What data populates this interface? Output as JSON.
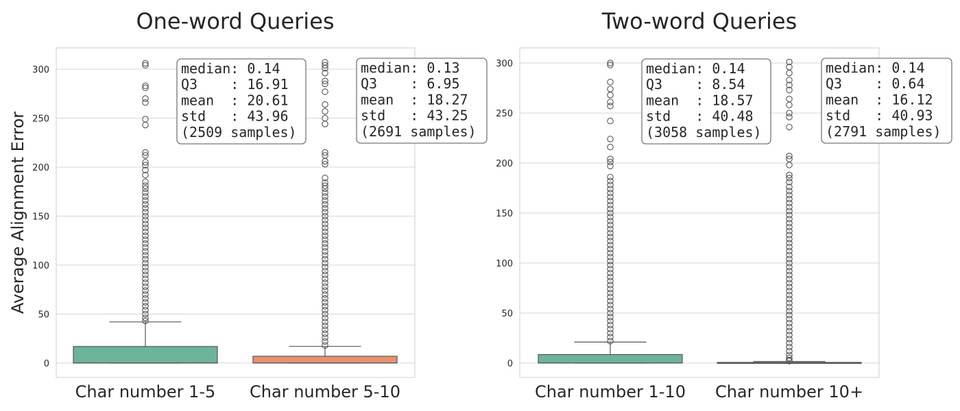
{
  "chart_data": [
    {
      "type": "box",
      "title": "One-word Queries",
      "ylabel": "Average Alignment Error",
      "xlabel": "",
      "ylim": [
        -15,
        323
      ],
      "yticks": [
        0,
        50,
        100,
        150,
        200,
        250,
        300
      ],
      "grid": true,
      "categories": [
        "Char number 1-5",
        "Char number 5-10"
      ],
      "colors": [
        "#6bb49a",
        "#e8916f"
      ],
      "boxes": [
        {
          "q1": 0.0,
          "median": 0.14,
          "q3": 16.91,
          "whisker_low": 0.0,
          "whisker_high": 42,
          "outliers": [
            306,
            304,
            283,
            281,
            270,
            266,
            249,
            243,
            215,
            212,
            205,
            202,
            197,
            192,
            185,
            181,
            178,
            174,
            170,
            166,
            162,
            158,
            154,
            150,
            146,
            142,
            138,
            134,
            130,
            126,
            122,
            118,
            114,
            110,
            106,
            102,
            98,
            94,
            90,
            86,
            82,
            78,
            74,
            70,
            66,
            62,
            58,
            54,
            50,
            46,
            43
          ],
          "stats": [
            "median: 0.14",
            "Q3    : 16.91",
            "mean  : 20.61",
            "std   : 43.96",
            "(2509 samples)"
          ]
        },
        {
          "q1": 0.0,
          "median": 0.13,
          "q3": 6.95,
          "whisker_low": 0.0,
          "whisker_high": 17,
          "outliers": [
            307,
            304,
            301,
            296,
            288,
            285,
            277,
            264,
            257,
            250,
            244,
            215,
            212,
            206,
            203,
            189,
            184,
            181,
            178,
            174,
            170,
            166,
            162,
            158,
            154,
            150,
            146,
            142,
            138,
            134,
            130,
            126,
            122,
            118,
            114,
            110,
            106,
            102,
            98,
            94,
            90,
            86,
            82,
            78,
            74,
            70,
            66,
            62,
            58,
            54,
            50,
            46,
            42,
            38,
            34,
            30,
            26,
            22,
            18
          ],
          "stats": [
            "median: 0.13",
            "Q3    : 6.95",
            "mean  : 18.27",
            "std   : 43.25",
            "(2691 samples)"
          ]
        }
      ]
    },
    {
      "type": "box",
      "title": "Two-word Queries",
      "ylabel": "",
      "xlabel": "",
      "ylim": [
        -15,
        315
      ],
      "yticks": [
        0,
        50,
        100,
        150,
        200,
        250,
        300
      ],
      "grid": true,
      "categories": [
        "Char number 1-10",
        "Char number 10+"
      ],
      "colors": [
        "#6bb49a",
        "#e8916f"
      ],
      "boxes": [
        {
          "q1": 0.0,
          "median": 0.14,
          "q3": 8.54,
          "whisker_low": 0.0,
          "whisker_high": 21,
          "outliers": [
            300,
            298,
            281,
            274,
            268,
            261,
            257,
            242,
            224,
            216,
            204,
            201,
            197,
            186,
            182,
            178,
            174,
            170,
            166,
            162,
            158,
            154,
            150,
            146,
            142,
            138,
            134,
            130,
            126,
            122,
            118,
            114,
            110,
            106,
            102,
            98,
            94,
            90,
            86,
            82,
            78,
            74,
            70,
            66,
            62,
            58,
            54,
            50,
            46,
            42,
            38,
            34,
            30,
            26,
            22
          ],
          "stats": [
            "median: 0.14",
            "Q3    : 8.54",
            "mean  : 18.57",
            "std   : 40.48",
            "(3058 samples)"
          ]
        },
        {
          "q1": 0.0,
          "median": 0.14,
          "q3": 0.64,
          "whisker_low": 0.0,
          "whisker_high": 1.6,
          "outliers": [
            301,
            296,
            290,
            283,
            278,
            273,
            264,
            258,
            250,
            246,
            236,
            207,
            204,
            198,
            188,
            185,
            181,
            176,
            172,
            168,
            164,
            160,
            156,
            152,
            148,
            144,
            140,
            136,
            132,
            128,
            124,
            120,
            116,
            112,
            108,
            104,
            100,
            96,
            92,
            88,
            84,
            80,
            76,
            72,
            68,
            64,
            60,
            56,
            52,
            48,
            44,
            40,
            36,
            32,
            28,
            24,
            20,
            16,
            12,
            8,
            5,
            3,
            2
          ],
          "stats": [
            "median: 0.14",
            "Q3    : 0.64",
            "mean  : 16.12",
            "std   : 40.93",
            "(2791 samples)"
          ]
        }
      ]
    }
  ]
}
